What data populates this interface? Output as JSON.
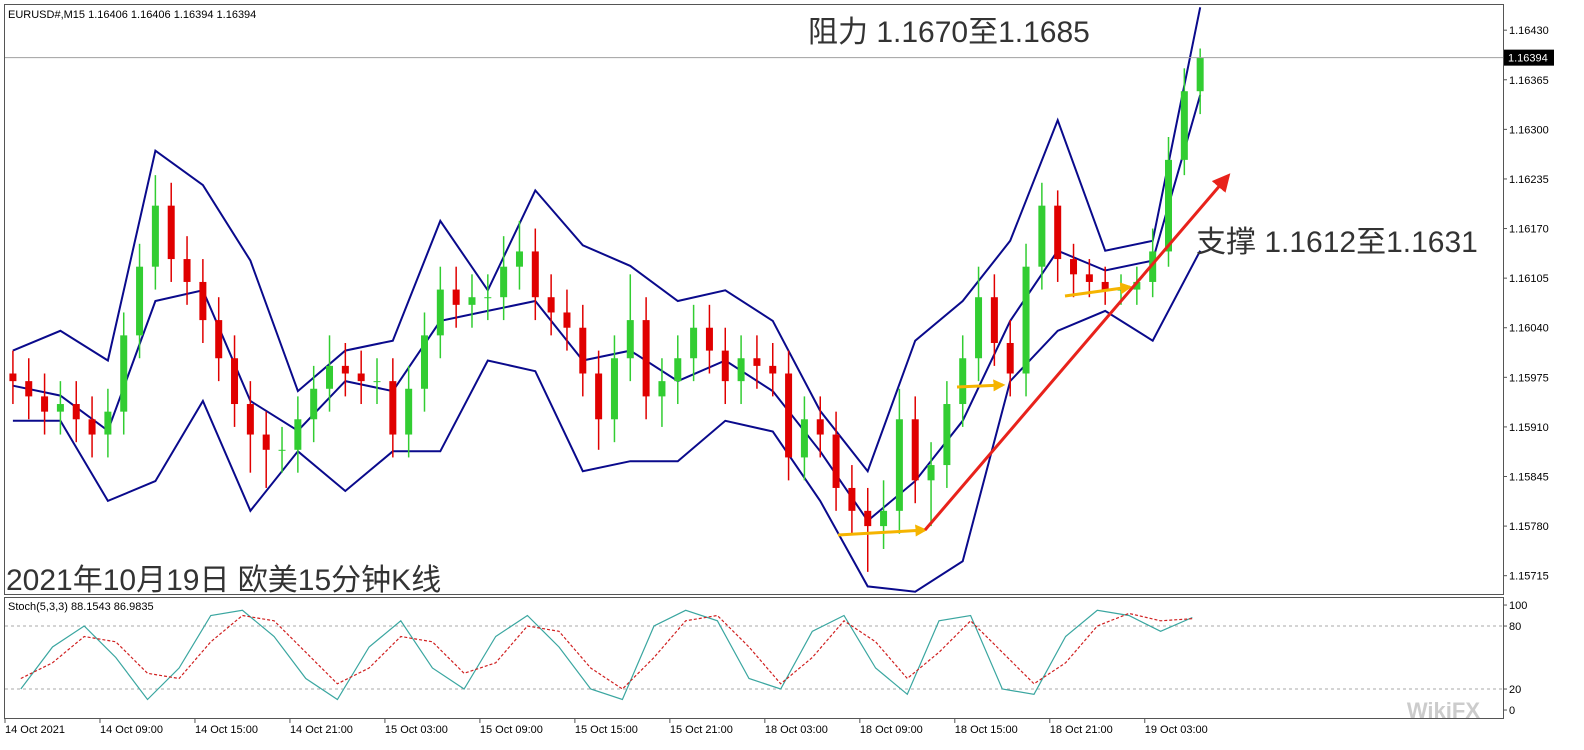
{
  "chart_data": [
    {
      "type": "candlestick",
      "title": "EURUSD#,M15  1.16406 1.16406 1.16394 1.16394",
      "annotations": [
        {
          "text": "阻力 1.1670至1.1685"
        },
        {
          "text": "支撑 1.1612至1.1631"
        },
        {
          "text": "2021年10月19日 欧美15分钟K线"
        }
      ],
      "watermark": "WikiFX",
      "categories": [
        "14 Oct 2021",
        null,
        null,
        null,
        null,
        null,
        "14 Oct 09:00",
        null,
        null,
        null,
        null,
        null,
        "14 Oct 15:00",
        null,
        null,
        null,
        null,
        null,
        "14 Oct 21:00",
        null,
        null,
        null,
        null,
        null,
        "15 Oct 03:00",
        null,
        null,
        null,
        null,
        null,
        "15 Oct 09:00",
        null,
        null,
        null,
        null,
        null,
        "15 Oct 15:00",
        null,
        null,
        null,
        null,
        null,
        "15 Oct 21:00",
        null,
        null,
        null,
        null,
        null,
        "18 Oct 03:00",
        null,
        null,
        null,
        null,
        null,
        "18 Oct 09:00",
        null,
        null,
        null,
        null,
        null,
        "18 Oct 15:00",
        null,
        null,
        null,
        null,
        null,
        "18 Oct 21:00",
        null,
        null,
        null,
        null,
        null,
        "19 Oct 03:00",
        null,
        null,
        null
      ],
      "open": [
        1.1598,
        1.1597,
        1.1595,
        1.1593,
        1.1594,
        1.1592,
        1.159,
        1.1593,
        1.1603,
        1.1612,
        1.162,
        1.1613,
        1.161,
        1.1605,
        1.16,
        1.1594,
        1.159,
        1.1588,
        1.1588,
        1.1592,
        1.1596,
        1.1599,
        1.1598,
        1.1597,
        1.1597,
        1.159,
        1.1596,
        1.1603,
        1.1609,
        1.1607,
        1.1608,
        1.1608,
        1.1612,
        1.1614,
        1.1608,
        1.1606,
        1.1604,
        1.1598,
        1.1592,
        1.16,
        1.1605,
        1.1595,
        1.1597,
        1.16,
        1.1604,
        1.1601,
        1.1597,
        1.16,
        1.1599,
        1.1598,
        1.1587,
        1.1592,
        1.159,
        1.1583,
        1.158,
        1.1578,
        1.158,
        1.1592,
        1.1584,
        1.1586,
        1.1594,
        1.16,
        1.1608,
        1.1602,
        1.1598,
        1.1612,
        1.162,
        1.1613,
        1.1611,
        1.161,
        1.1609,
        1.1609,
        1.161,
        1.1614,
        1.1626,
        1.1635
      ],
      "high": [
        1.1601,
        1.16,
        1.1598,
        1.1597,
        1.1597,
        1.1595,
        1.1596,
        1.1606,
        1.1615,
        1.1624,
        1.1623,
        1.1616,
        1.1613,
        1.1608,
        1.1603,
        1.1597,
        1.1593,
        1.1591,
        1.1595,
        1.1599,
        1.1603,
        1.1602,
        1.1601,
        1.16,
        1.16,
        1.1599,
        1.1606,
        1.1612,
        1.1612,
        1.1611,
        1.1611,
        1.1616,
        1.1618,
        1.1617,
        1.1611,
        1.1609,
        1.1607,
        1.1601,
        1.1603,
        1.1611,
        1.1608,
        1.16,
        1.1603,
        1.1607,
        1.1607,
        1.1604,
        1.1603,
        1.1603,
        1.1602,
        1.1601,
        1.1595,
        1.1595,
        1.1593,
        1.1586,
        1.1583,
        1.1584,
        1.1596,
        1.1595,
        1.1589,
        1.1597,
        1.1603,
        1.1612,
        1.1611,
        1.1605,
        1.1615,
        1.1623,
        1.1622,
        1.1615,
        1.1613,
        1.1612,
        1.1611,
        1.1612,
        1.1617,
        1.1629,
        1.1638,
        1.16406
      ],
      "low": [
        1.1594,
        1.1592,
        1.159,
        1.159,
        1.1589,
        1.1587,
        1.1587,
        1.159,
        1.16,
        1.1609,
        1.161,
        1.1607,
        1.1602,
        1.1597,
        1.1591,
        1.1585,
        1.1583,
        1.1585,
        1.1585,
        1.1589,
        1.1593,
        1.1595,
        1.1594,
        1.1594,
        1.1587,
        1.1587,
        1.1593,
        1.16,
        1.1604,
        1.1604,
        1.1605,
        1.1605,
        1.1609,
        1.1605,
        1.1603,
        1.1601,
        1.1595,
        1.1588,
        1.1589,
        1.1597,
        1.1592,
        1.1591,
        1.1594,
        1.1597,
        1.1598,
        1.1594,
        1.1594,
        1.1596,
        1.1595,
        1.1584,
        1.1584,
        1.1587,
        1.158,
        1.1577,
        1.1572,
        1.1575,
        1.1577,
        1.1581,
        1.1578,
        1.1583,
        1.1591,
        1.1597,
        1.1599,
        1.1595,
        1.1595,
        1.1609,
        1.161,
        1.1608,
        1.1608,
        1.1607,
        1.1607,
        1.1607,
        1.1608,
        1.1612,
        1.1624,
        1.1632
      ],
      "close": [
        1.1597,
        1.1595,
        1.1593,
        1.1594,
        1.1592,
        1.159,
        1.1593,
        1.1603,
        1.1612,
        1.162,
        1.1613,
        1.161,
        1.1605,
        1.16,
        1.1594,
        1.159,
        1.1588,
        1.1588,
        1.1592,
        1.1596,
        1.1599,
        1.1598,
        1.1597,
        1.1597,
        1.159,
        1.1596,
        1.1603,
        1.1609,
        1.1607,
        1.1608,
        1.1608,
        1.1612,
        1.1614,
        1.1608,
        1.1606,
        1.1604,
        1.1598,
        1.1592,
        1.16,
        1.1605,
        1.1595,
        1.1597,
        1.16,
        1.1604,
        1.1601,
        1.1597,
        1.16,
        1.1599,
        1.1598,
        1.1587,
        1.1592,
        1.159,
        1.1583,
        1.158,
        1.1578,
        1.158,
        1.1592,
        1.1584,
        1.1586,
        1.1594,
        1.16,
        1.1608,
        1.1602,
        1.1598,
        1.1612,
        1.162,
        1.1613,
        1.1611,
        1.161,
        1.1609,
        1.1609,
        1.161,
        1.1614,
        1.1626,
        1.1635,
        1.16394
      ],
      "up_color": "#32cd32",
      "down_color": "#e00000",
      "bands": [
        {
          "color": "#0a0a8c",
          "values": [
            1.1601,
            1.16036,
            1.15997,
            1.16272,
            1.16227,
            1.16128,
            1.15957,
            1.1601,
            1.16023,
            1.1618,
            1.16089,
            1.1622,
            1.16148,
            1.16121,
            1.16075,
            1.16089,
            1.16049,
            1.15931,
            1.15852,
            1.16023,
            1.16075,
            1.16154,
            1.16312,
            1.16141,
            1.16154,
            1.1646
          ]
        },
        {
          "color": "#0a0a8c",
          "values": [
            1.15964,
            1.15951,
            1.15905,
            1.16075,
            1.16089,
            1.15944,
            1.15905,
            1.1597,
            1.15957,
            1.16049,
            1.16062,
            1.16075,
            1.15997,
            1.1601,
            1.1597,
            1.15997,
            1.15957,
            1.15878,
            1.15787,
            1.15839,
            1.15918,
            1.16049,
            1.16141,
            1.16115,
            1.16128,
            1.16345
          ]
        },
        {
          "color": "#0a0a8c",
          "values": [
            1.15918,
            1.15918,
            1.15813,
            1.15839,
            1.15944,
            1.158,
            1.15878,
            1.15826,
            1.15878,
            1.15878,
            1.15997,
            1.15983,
            1.15852,
            1.15865,
            1.15865,
            1.15918,
            1.15904,
            1.15813,
            1.15701,
            1.15694,
            1.15734,
            1.1597,
            1.16036,
            1.16062,
            1.16023,
            1.16141
          ]
        }
      ],
      "last_price": 1.16394,
      "ylim": [
        1.15691,
        1.16463
      ],
      "yticks": [
        {
          "value": 1.15715,
          "label": "1.15715"
        },
        {
          "value": 1.1578,
          "label": "1.15780"
        },
        {
          "value": 1.15845,
          "label": "1.15845"
        },
        {
          "value": 1.1591,
          "label": "1.15910"
        },
        {
          "value": 1.15975,
          "label": "1.15975"
        },
        {
          "value": 1.1604,
          "label": "1.16040"
        },
        {
          "value": 1.16105,
          "label": "1.16105"
        },
        {
          "value": 1.1617,
          "label": "1.16170"
        },
        {
          "value": 1.16235,
          "label": "1.16235"
        },
        {
          "value": 1.163,
          "label": "1.16300"
        },
        {
          "value": 1.16365,
          "label": "1.16365"
        },
        {
          "value": 1.1643,
          "label": "1.16430"
        }
      ]
    },
    {
      "type": "line",
      "title": "Stoch(5,3,3) 88.1543 86.9835",
      "series": [
        {
          "name": "Main",
          "color": "#3aa6a0",
          "values": [
            20,
            60,
            80,
            50,
            10,
            40,
            90,
            95,
            70,
            30,
            10,
            60,
            85,
            40,
            20,
            70,
            90,
            60,
            20,
            10,
            80,
            95,
            85,
            30,
            20,
            75,
            90,
            40,
            15,
            85,
            90,
            20,
            15,
            70,
            95,
            90,
            75,
            88.1543
          ]
        },
        {
          "name": "Signal",
          "color": "#d02020",
          "values": [
            30,
            45,
            70,
            65,
            35,
            30,
            65,
            90,
            85,
            55,
            25,
            40,
            70,
            65,
            35,
            45,
            80,
            75,
            40,
            20,
            50,
            85,
            90,
            60,
            25,
            50,
            85,
            65,
            30,
            55,
            85,
            55,
            25,
            45,
            80,
            92,
            85,
            86.9835
          ]
        }
      ],
      "ylim": [
        -7.6,
        106.7
      ],
      "yticks": [
        0,
        20,
        80,
        100
      ],
      "levels": [
        20,
        80
      ]
    }
  ]
}
